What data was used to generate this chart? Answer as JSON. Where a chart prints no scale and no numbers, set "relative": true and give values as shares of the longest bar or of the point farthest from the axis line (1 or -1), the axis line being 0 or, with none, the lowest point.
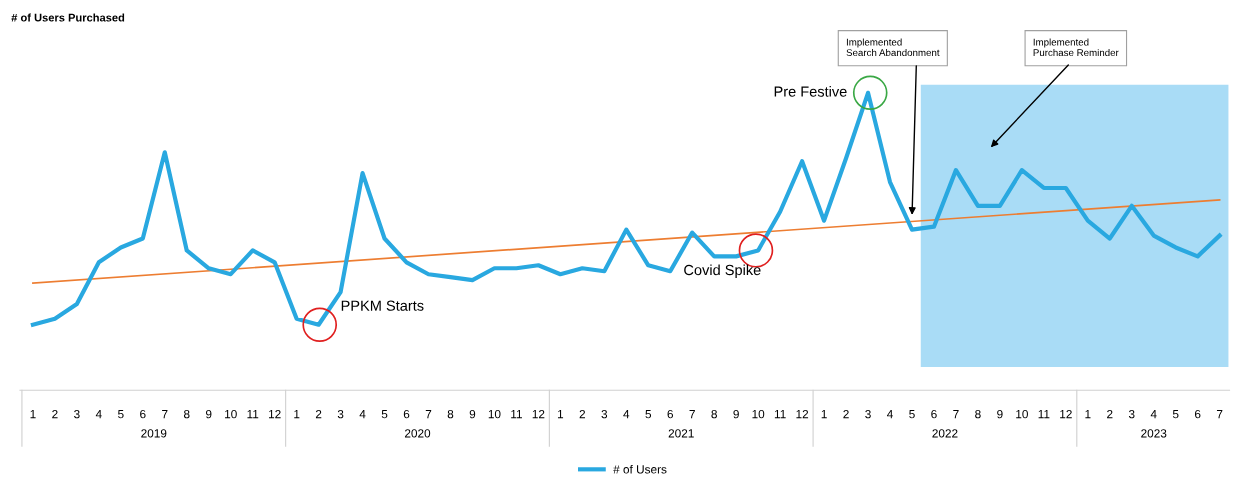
{
  "chart_data": {
    "type": "line",
    "title": "# of Users Purchased",
    "relative": true,
    "categories": [
      "1",
      "2",
      "3",
      "4",
      "5",
      "6",
      "7",
      "8",
      "9",
      "10",
      "11",
      "12",
      "1",
      "2",
      "3",
      "4",
      "5",
      "6",
      "7",
      "8",
      "9",
      "10",
      "11",
      "12",
      "1",
      "2",
      "3",
      "4",
      "5",
      "6",
      "7",
      "8",
      "9",
      "10",
      "11",
      "12",
      "1",
      "2",
      "3",
      "4",
      "5",
      "6",
      "7",
      "8",
      "9",
      "10",
      "11",
      "12",
      "1",
      "2",
      "3",
      "4",
      "5",
      "6",
      "7"
    ],
    "series": [
      {
        "name": "# of Users",
        "color": "#29a8e0",
        "values": [
          0.22,
          0.24,
          0.29,
          0.43,
          0.48,
          0.51,
          0.8,
          0.47,
          0.41,
          0.39,
          0.47,
          0.43,
          0.24,
          0.22,
          0.33,
          0.73,
          0.51,
          0.43,
          0.39,
          0.38,
          0.37,
          0.41,
          0.41,
          0.42,
          0.39,
          0.41,
          0.4,
          0.54,
          0.42,
          0.4,
          0.53,
          0.45,
          0.45,
          0.47,
          0.6,
          0.77,
          0.57,
          0.78,
          1,
          0.7,
          0.54,
          0.55,
          0.74,
          0.62,
          0.62,
          0.74,
          0.68,
          0.68,
          0.57,
          0.51,
          0.62,
          0.52,
          0.48,
          0.45,
          0.52
        ]
      },
      {
        "type": "line",
        "color": "#ed7d31",
        "values": [
          0.36,
          null,
          null,
          null,
          null,
          null,
          null,
          null,
          null,
          null,
          null,
          null,
          null,
          null,
          null,
          null,
          null,
          null,
          null,
          null,
          null,
          null,
          null,
          null,
          null,
          null,
          null,
          null,
          null,
          null,
          null,
          null,
          null,
          null,
          null,
          null,
          null,
          null,
          null,
          null,
          null,
          null,
          null,
          null,
          null,
          null,
          null,
          null,
          null,
          null,
          null,
          null,
          null,
          null,
          0.64
        ]
      }
    ],
    "annotations": [
      "PPKM Starts",
      "Covid Spike",
      "Pre Festive",
      "Implemented\nSearch Abandonment",
      "Implemented\nPurchase Reminder",
      "2019",
      "2020",
      "2021",
      "2022",
      "2023"
    ],
    "legend": "bottom",
    "grid": false
  }
}
